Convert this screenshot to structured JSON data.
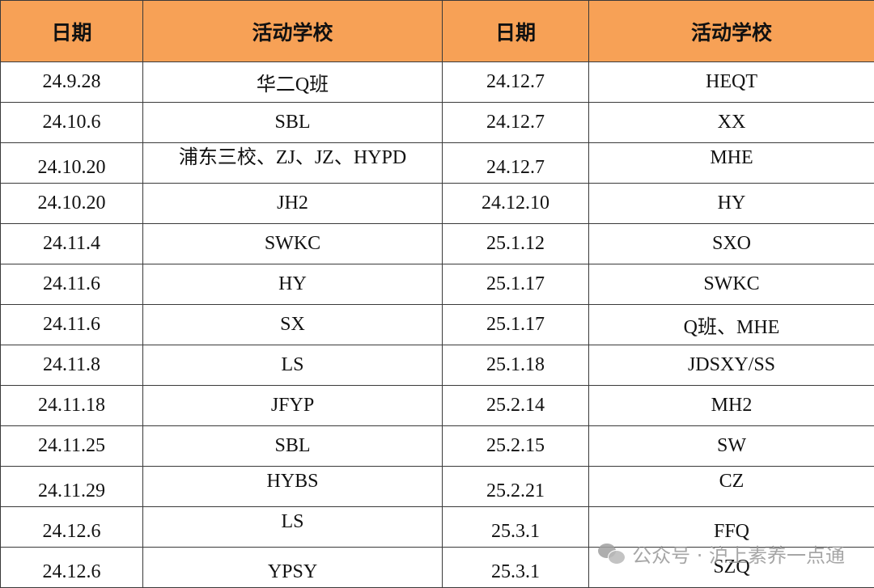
{
  "table": {
    "headers": [
      "日期",
      "活动学校",
      "日期",
      "活动学校"
    ],
    "rows": [
      [
        "24.9.28",
        "华二Q班",
        "24.12.7",
        "HEQT"
      ],
      [
        "24.10.6",
        "SBL",
        "24.12.7",
        "XX"
      ],
      [
        "24.10.20",
        "浦东三校、ZJ、JZ、HYPD",
        "24.12.7",
        "MHE"
      ],
      [
        "24.10.20",
        "JH2",
        "24.12.10",
        "HY"
      ],
      [
        "24.11.4",
        "SWKC",
        "25.1.12",
        "SXO"
      ],
      [
        "24.11.6",
        "HY",
        "25.1.17",
        "SWKC"
      ],
      [
        "24.11.6",
        "SX",
        "25.1.17",
        "Q班、MHE"
      ],
      [
        "24.11.8",
        "LS",
        "25.1.18",
        "JDSXY/SS"
      ],
      [
        "24.11.18",
        "JFYP",
        "25.2.14",
        "MH2"
      ],
      [
        "24.11.25",
        "SBL",
        "25.2.15",
        "SW"
      ],
      [
        "24.11.29",
        "HYBS",
        "25.2.21",
        "CZ"
      ],
      [
        "24.12.6",
        "LS",
        "25.3.1",
        "FFQ"
      ],
      [
        "24.12.6",
        "YPSY",
        "25.3.1",
        "SZQ"
      ]
    ]
  },
  "watermark": {
    "text": "公众号 · 沪上素养一点通",
    "icon": "wechat-icon"
  }
}
